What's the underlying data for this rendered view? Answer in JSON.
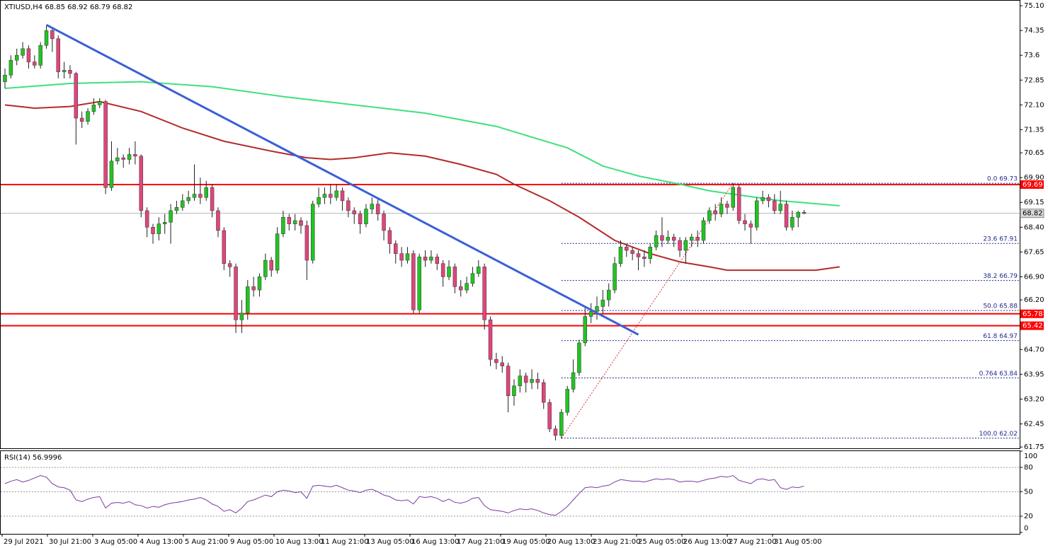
{
  "chart_data": {
    "type": "candlestick",
    "title": "XTIUSD,H4  68.85 68.92 68.79 68.82",
    "bull_color": "#22c322",
    "bear_color": "#e0457b",
    "wick_color": "#202020",
    "ylim": [
      61.69,
      75.23
    ],
    "yticks": [
      {
        "value": 75.1,
        "label": "75.10"
      },
      74.35,
      73.6,
      72.85,
      {
        "value": 72.1,
        "label": "72.10"
      },
      71.35,
      70.65,
      {
        "value": 69.9,
        "label": "69.90"
      },
      69.15,
      {
        "value": 68.4,
        "label": "68.40"
      },
      67.65,
      {
        "value": 66.9,
        "label": "66.90"
      },
      {
        "value": 66.2,
        "label": "66.20"
      },
      65.45,
      {
        "value": 64.7,
        "label": "64.70"
      },
      63.95,
      {
        "value": 63.2,
        "label": "63.20"
      },
      62.45,
      61.75
    ],
    "x_labels": [
      "29 Jul 2021",
      "30 Jul 21:00",
      "3 Aug 05:00",
      "4 Aug 13:00",
      "5 Aug 21:00",
      "9 Aug 05:00",
      "10 Aug 13:00",
      "11 Aug 21:00",
      "13 Aug 05:00",
      "16 Aug 13:00",
      "17 Aug 21:00",
      "19 Aug 05:00",
      "20 Aug 13:00",
      "23 Aug 21:00",
      "25 Aug 05:00",
      "26 Aug 13:00",
      "27 Aug 21:00",
      "31 Aug 05:00"
    ],
    "candles": [
      [
        72.8,
        73.2,
        72.6,
        73.0
      ],
      [
        73.0,
        73.6,
        72.9,
        73.45
      ],
      [
        73.45,
        73.8,
        73.3,
        73.6
      ],
      [
        73.6,
        74.0,
        73.5,
        73.8
      ],
      [
        73.8,
        73.9,
        73.2,
        73.4
      ],
      [
        73.4,
        73.6,
        73.2,
        73.3
      ],
      [
        73.3,
        74.0,
        73.2,
        73.9
      ],
      [
        73.9,
        74.5,
        73.8,
        74.35
      ],
      [
        74.35,
        74.4,
        73.7,
        74.1
      ],
      [
        74.1,
        74.2,
        72.9,
        73.1
      ],
      [
        73.1,
        73.4,
        72.9,
        73.15
      ],
      [
        73.15,
        73.3,
        72.9,
        73.05
      ],
      [
        73.05,
        73.1,
        70.9,
        71.7
      ],
      [
        71.7,
        71.9,
        71.4,
        71.6
      ],
      [
        71.6,
        72.0,
        71.5,
        71.9
      ],
      [
        71.9,
        72.3,
        71.8,
        72.1
      ],
      [
        72.1,
        72.3,
        72.0,
        72.2
      ],
      [
        72.2,
        72.25,
        69.4,
        69.6
      ],
      [
        69.6,
        71.0,
        69.5,
        70.4
      ],
      [
        70.4,
        70.8,
        70.3,
        70.5
      ],
      [
        70.5,
        70.6,
        70.2,
        70.45
      ],
      [
        70.45,
        70.8,
        70.3,
        70.6
      ],
      [
        70.6,
        71.0,
        70.3,
        70.55
      ],
      [
        70.55,
        70.6,
        68.7,
        68.9
      ],
      [
        68.9,
        69.0,
        68.1,
        68.4
      ],
      [
        68.4,
        68.5,
        67.9,
        68.2
      ],
      [
        68.2,
        68.7,
        68.0,
        68.5
      ],
      [
        68.5,
        68.8,
        68.2,
        68.55
      ],
      [
        68.55,
        69.1,
        67.9,
        68.9
      ],
      [
        68.9,
        69.2,
        68.8,
        69.0
      ],
      [
        69.0,
        69.4,
        68.9,
        69.2
      ],
      [
        69.2,
        69.5,
        69.1,
        69.3
      ],
      [
        69.3,
        70.3,
        69.2,
        69.4
      ],
      [
        69.4,
        69.9,
        69.1,
        69.3
      ],
      [
        69.3,
        69.8,
        69.2,
        69.6
      ],
      [
        69.6,
        69.7,
        68.7,
        68.9
      ],
      [
        68.9,
        69.0,
        68.1,
        68.3
      ],
      [
        68.3,
        68.4,
        67.1,
        67.3
      ],
      [
        67.3,
        67.4,
        66.9,
        67.2
      ],
      [
        67.2,
        67.3,
        65.2,
        65.6
      ],
      [
        65.6,
        66.2,
        65.2,
        65.8
      ],
      [
        65.8,
        66.8,
        65.6,
        66.6
      ],
      [
        66.6,
        66.9,
        66.3,
        66.5
      ],
      [
        66.5,
        67.0,
        66.3,
        66.9
      ],
      [
        66.9,
        67.6,
        66.8,
        67.4
      ],
      [
        67.4,
        67.5,
        66.9,
        67.1
      ],
      [
        67.1,
        68.4,
        67.0,
        68.2
      ],
      [
        68.2,
        68.9,
        68.1,
        68.7
      ],
      [
        68.7,
        68.8,
        68.3,
        68.5
      ],
      [
        68.5,
        68.8,
        68.3,
        68.6
      ],
      [
        68.6,
        68.7,
        68.2,
        68.45
      ],
      [
        68.45,
        68.6,
        66.8,
        67.4
      ],
      [
        67.4,
        69.2,
        67.3,
        69.1
      ],
      [
        69.1,
        69.6,
        69.0,
        69.3
      ],
      [
        69.3,
        69.6,
        69.1,
        69.4
      ],
      [
        69.4,
        69.7,
        69.1,
        69.3
      ],
      [
        69.3,
        69.7,
        69.2,
        69.5
      ],
      [
        69.5,
        69.6,
        68.9,
        69.2
      ],
      [
        69.2,
        69.3,
        68.7,
        68.9
      ],
      [
        68.9,
        69.0,
        68.5,
        68.8
      ],
      [
        68.8,
        68.9,
        68.2,
        68.5
      ],
      [
        68.5,
        69.1,
        68.4,
        68.95
      ],
      [
        68.95,
        69.3,
        68.8,
        69.1
      ],
      [
        69.1,
        69.3,
        68.6,
        68.8
      ],
      [
        68.8,
        68.9,
        68.0,
        68.3
      ],
      [
        68.3,
        68.4,
        67.6,
        67.9
      ],
      [
        67.9,
        68.0,
        67.3,
        67.6
      ],
      [
        67.6,
        67.8,
        67.2,
        67.4
      ],
      [
        67.4,
        67.8,
        67.3,
        67.6
      ],
      [
        67.6,
        67.7,
        65.8,
        65.9
      ],
      [
        65.9,
        67.6,
        65.8,
        67.5
      ],
      [
        67.5,
        67.7,
        67.2,
        67.4
      ],
      [
        67.4,
        67.7,
        67.3,
        67.5
      ],
      [
        67.5,
        67.6,
        67.1,
        67.3
      ],
      [
        67.3,
        67.4,
        66.6,
        66.9
      ],
      [
        66.9,
        67.4,
        66.8,
        67.2
      ],
      [
        67.2,
        67.3,
        66.4,
        66.6
      ],
      [
        66.6,
        66.8,
        66.3,
        66.5
      ],
      [
        66.5,
        66.9,
        66.4,
        66.7
      ],
      [
        66.7,
        67.2,
        66.6,
        67.0
      ],
      [
        67.0,
        67.4,
        66.9,
        67.2
      ],
      [
        67.2,
        67.3,
        65.3,
        65.6
      ],
      [
        65.6,
        65.7,
        64.2,
        64.4
      ],
      [
        64.4,
        64.6,
        64.1,
        64.3
      ],
      [
        64.3,
        64.5,
        64.0,
        64.2
      ],
      [
        64.2,
        64.3,
        62.8,
        63.3
      ],
      [
        63.3,
        63.8,
        63.0,
        63.6
      ],
      [
        63.6,
        64.1,
        63.4,
        63.9
      ],
      [
        63.9,
        64.0,
        63.4,
        63.7
      ],
      [
        63.7,
        64.1,
        63.5,
        63.8
      ],
      [
        63.8,
        64.0,
        63.5,
        63.7
      ],
      [
        63.7,
        63.8,
        62.9,
        63.1
      ],
      [
        63.1,
        63.2,
        62.2,
        62.3
      ],
      [
        62.3,
        62.4,
        61.95,
        62.1
      ],
      [
        62.1,
        62.9,
        62.0,
        62.8
      ],
      [
        62.8,
        63.6,
        62.7,
        63.5
      ],
      [
        63.5,
        64.4,
        63.4,
        64.0
      ],
      [
        64.0,
        65.0,
        63.9,
        64.9
      ],
      [
        64.9,
        66.0,
        64.8,
        65.7
      ],
      [
        65.7,
        66.1,
        65.5,
        65.85
      ],
      [
        65.85,
        66.3,
        65.6,
        66.0
      ],
      [
        66.0,
        66.5,
        65.8,
        66.2
      ],
      [
        66.2,
        66.7,
        66.0,
        66.5
      ],
      [
        66.5,
        67.5,
        66.4,
        67.3
      ],
      [
        67.3,
        68.0,
        67.2,
        67.8
      ],
      [
        67.8,
        67.9,
        67.5,
        67.7
      ],
      [
        67.7,
        67.8,
        67.4,
        67.6
      ],
      [
        67.6,
        67.7,
        67.1,
        67.5
      ],
      [
        67.5,
        67.7,
        67.2,
        67.45
      ],
      [
        67.45,
        67.9,
        67.3,
        67.8
      ],
      [
        67.8,
        68.3,
        67.7,
        68.15
      ],
      [
        68.15,
        68.7,
        67.8,
        68.0
      ],
      [
        68.0,
        68.3,
        67.9,
        68.1
      ],
      [
        68.1,
        68.2,
        67.8,
        68.0
      ],
      [
        68.0,
        68.1,
        67.5,
        67.7
      ],
      [
        67.7,
        68.1,
        67.3,
        68.0
      ],
      [
        68.0,
        68.2,
        67.8,
        68.1
      ],
      [
        68.1,
        68.3,
        67.8,
        68.0
      ],
      [
        68.0,
        68.7,
        67.9,
        68.6
      ],
      [
        68.6,
        69.0,
        68.5,
        68.9
      ],
      [
        68.9,
        69.1,
        68.6,
        68.8
      ],
      [
        68.8,
        69.3,
        68.7,
        69.1
      ],
      [
        69.1,
        69.2,
        68.8,
        69.0
      ],
      [
        69.0,
        69.73,
        68.9,
        69.6
      ],
      [
        69.6,
        69.7,
        68.5,
        68.6
      ],
      [
        68.6,
        68.8,
        68.3,
        68.5
      ],
      [
        68.5,
        68.6,
        67.9,
        68.4
      ],
      [
        68.4,
        69.3,
        68.3,
        69.2
      ],
      [
        69.2,
        69.5,
        69.1,
        69.3
      ],
      [
        69.3,
        69.4,
        69.0,
        69.2
      ],
      [
        69.2,
        69.4,
        68.8,
        68.9
      ],
      [
        68.9,
        69.5,
        68.8,
        69.1
      ],
      [
        69.1,
        69.2,
        68.3,
        68.4
      ],
      [
        68.4,
        68.9,
        68.3,
        68.7
      ],
      [
        68.7,
        68.9,
        68.4,
        68.85
      ],
      [
        68.85,
        68.92,
        68.79,
        68.82
      ]
    ],
    "moving_averages": [
      {
        "color": "#b52a2a",
        "x": [
          0,
          5,
          11,
          16,
          23,
          30,
          37,
          45,
          51,
          55,
          59,
          65,
          71,
          77,
          83,
          86,
          92,
          97,
          103,
          109,
          114,
          119,
          122,
          131,
          137,
          141
        ],
        "values": [
          72.1,
          72.0,
          72.05,
          72.2,
          71.9,
          71.4,
          71.0,
          70.7,
          70.5,
          70.45,
          70.5,
          70.65,
          70.55,
          70.3,
          70.0,
          69.7,
          69.2,
          68.7,
          68.0,
          67.6,
          67.35,
          67.2,
          67.1,
          67.1,
          67.1,
          67.2
        ]
      },
      {
        "color": "#3fe07f",
        "x": [
          0,
          11,
          23,
          35,
          47,
          59,
          71,
          83,
          95,
          101,
          107,
          114,
          119,
          125,
          131,
          141
        ],
        "values": [
          72.6,
          72.75,
          72.8,
          72.65,
          72.35,
          72.1,
          71.85,
          71.45,
          70.8,
          70.25,
          69.95,
          69.7,
          69.5,
          69.35,
          69.2,
          69.05
        ]
      }
    ],
    "trendline": {
      "color": "#3b5fd6",
      "x": [
        7,
        107
      ],
      "values": [
        74.52,
        65.15
      ]
    },
    "fib_line": {
      "color": "#e03030",
      "x": [
        94,
        123
      ],
      "values": [
        62.02,
        69.73
      ]
    },
    "fib_color": "#1f2a8a",
    "fib_levels": [
      {
        "label": "0.0 69.73",
        "price": 69.73
      },
      {
        "label": "23.6 67.91",
        "price": 67.91
      },
      {
        "label": "38.2 66.79",
        "price": 66.79
      },
      {
        "label": "50.0 65.88",
        "price": 65.88
      },
      {
        "label": "61.8 64.97",
        "price": 64.97
      },
      {
        "label": "0.764 63.84",
        "price": 63.84
      },
      {
        "label": "100.0 62.02",
        "price": 62.02
      }
    ],
    "levels": [
      69.69,
      65.78,
      65.42
    ],
    "level_color": "#ff0000",
    "current_price": 68.82,
    "rsi": {
      "title": "RSI(14) 56.9996",
      "color": "#7b3aa0",
      "ylim": [
        0,
        100
      ],
      "yticks": [
        100,
        80,
        50,
        20,
        0
      ],
      "values": [
        60,
        63,
        65,
        62,
        64,
        67,
        70,
        68,
        60,
        56,
        55,
        52,
        40,
        38,
        41,
        43,
        44,
        30,
        36,
        37,
        36,
        38,
        34,
        33,
        30,
        32,
        31,
        34,
        36,
        37,
        38,
        40,
        41,
        43,
        40,
        35,
        32,
        26,
        28,
        24,
        30,
        38,
        40,
        43,
        46,
        44,
        50,
        52,
        51,
        49,
        50,
        42,
        57,
        58,
        57,
        56,
        58,
        55,
        52,
        51,
        49,
        52,
        53,
        50,
        46,
        44,
        40,
        39,
        40,
        35,
        44,
        43,
        44,
        42,
        38,
        41,
        37,
        36,
        38,
        42,
        43,
        33,
        28,
        27,
        26,
        24,
        27,
        29,
        28,
        29,
        27,
        24,
        22,
        21,
        26,
        32,
        40,
        48,
        55,
        56,
        55,
        57,
        58,
        62,
        65,
        64,
        63,
        63,
        62,
        64,
        66,
        65,
        66,
        65,
        62,
        63,
        63,
        62,
        64,
        66,
        67,
        69,
        68,
        70,
        64,
        62,
        60,
        65,
        66,
        64,
        65,
        55,
        53,
        56,
        55,
        57
      ]
    }
  }
}
